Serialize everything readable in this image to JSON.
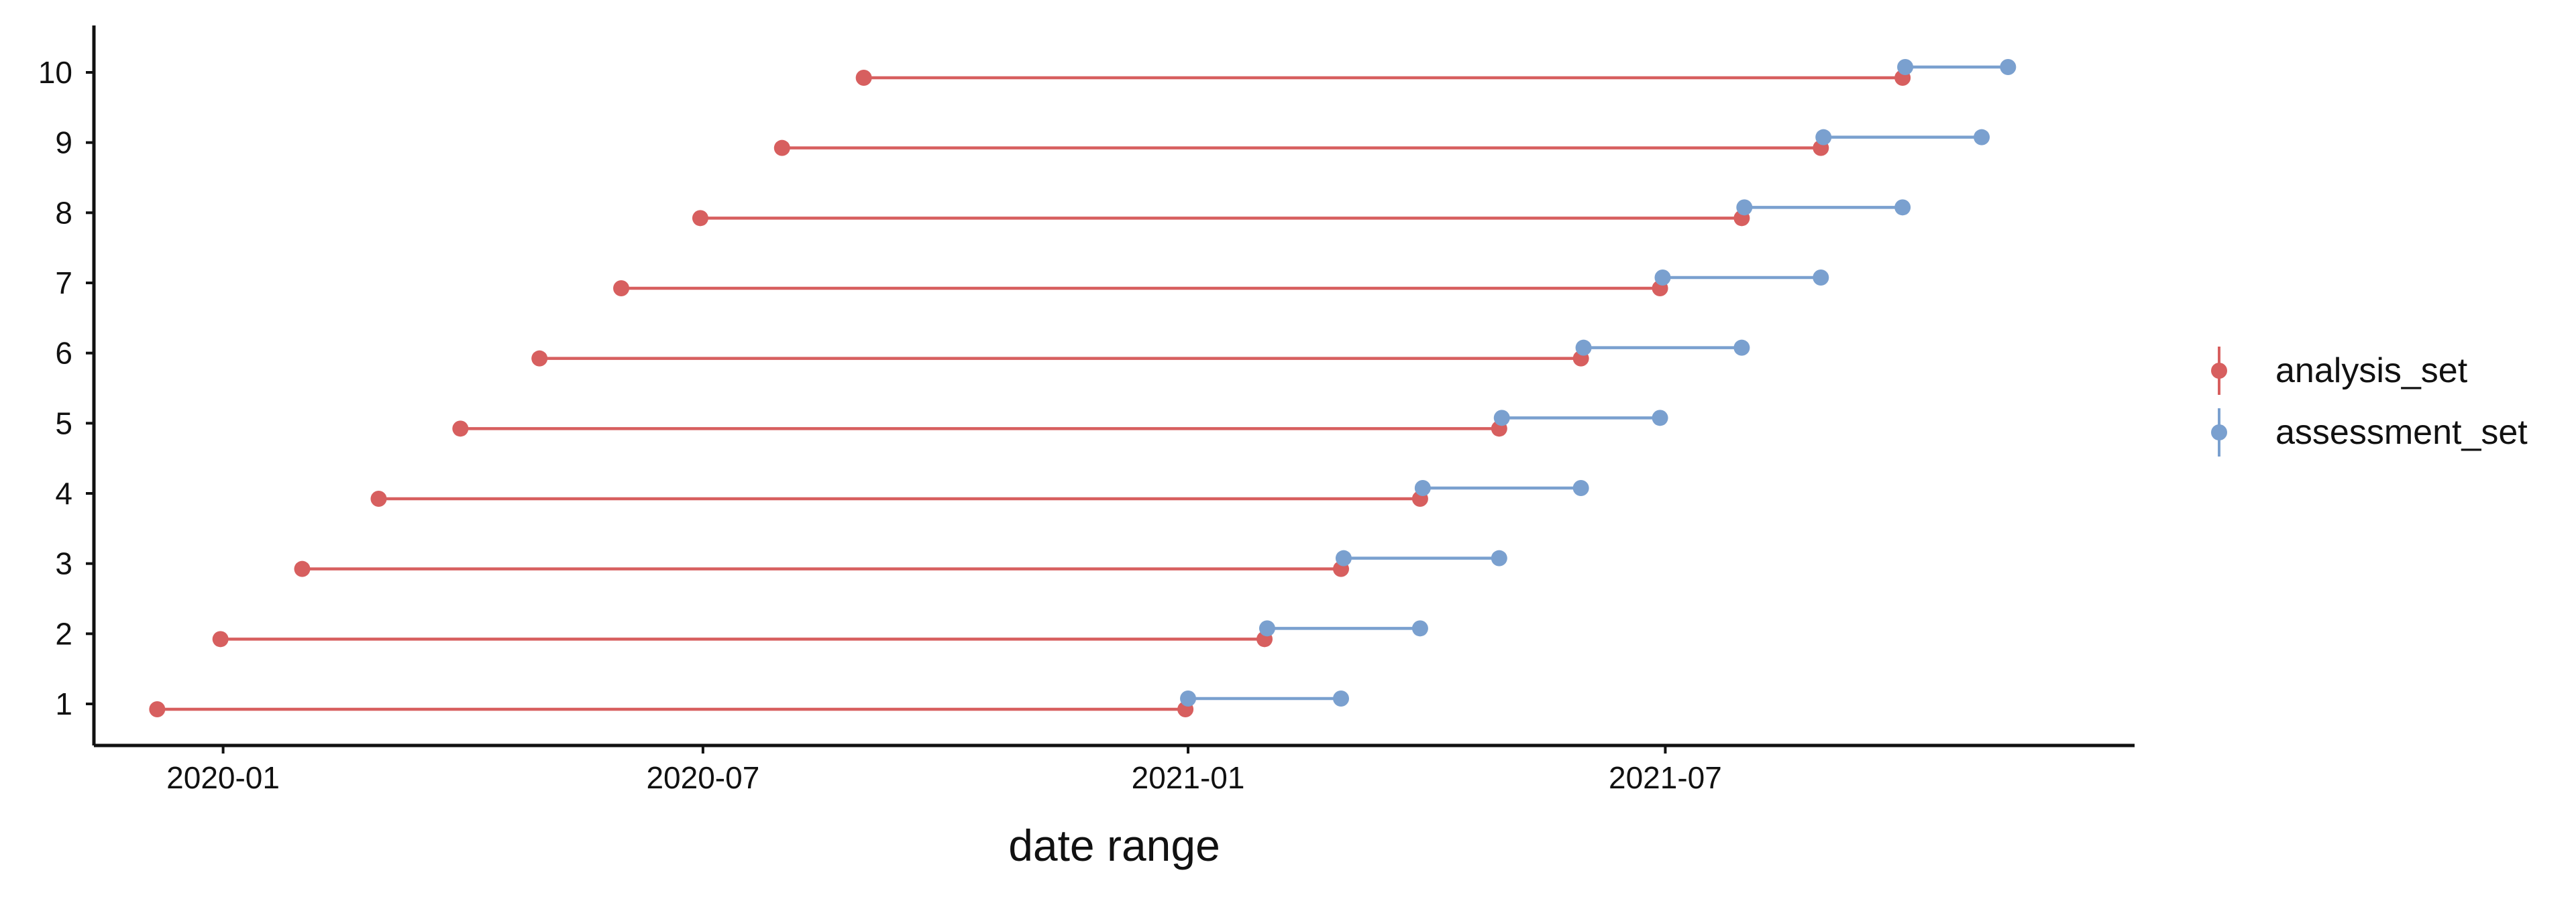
{
  "chart_data": {
    "type": "line",
    "title": "",
    "xlabel": "date range",
    "ylabel": "",
    "x_ticks": [
      "2020-01",
      "2020-07",
      "2021-01",
      "2021-07"
    ],
    "x_tick_dates": [
      "2020-01-01",
      "2020-07-01",
      "2021-01-01",
      "2021-07-01"
    ],
    "x_range": [
      "2019-11-13",
      "2021-12-26"
    ],
    "y_categories": [
      "1",
      "2",
      "3",
      "4",
      "5",
      "6",
      "7",
      "8",
      "9",
      "10"
    ],
    "grid": false,
    "legend_position": "right",
    "colors": {
      "analysis_set": "#d75f5f",
      "assessment_set": "#7aa0cf"
    },
    "series": [
      {
        "name": "analysis_set",
        "segments": [
          {
            "y": "1",
            "start": "2019-12-07",
            "end": "2020-12-31"
          },
          {
            "y": "2",
            "start": "2019-12-31",
            "end": "2021-01-30"
          },
          {
            "y": "3",
            "start": "2020-01-31",
            "end": "2021-02-28"
          },
          {
            "y": "4",
            "start": "2020-02-29",
            "end": "2021-03-30"
          },
          {
            "y": "5",
            "start": "2020-03-31",
            "end": "2021-04-29"
          },
          {
            "y": "6",
            "start": "2020-04-30",
            "end": "2021-05-30"
          },
          {
            "y": "7",
            "start": "2020-05-31",
            "end": "2021-06-29"
          },
          {
            "y": "8",
            "start": "2020-06-30",
            "end": "2021-07-30"
          },
          {
            "y": "9",
            "start": "2020-07-31",
            "end": "2021-08-29"
          },
          {
            "y": "10",
            "start": "2020-08-31",
            "end": "2021-09-29"
          }
        ]
      },
      {
        "name": "assessment_set",
        "segments": [
          {
            "y": "1",
            "start": "2021-01-01",
            "end": "2021-02-28"
          },
          {
            "y": "2",
            "start": "2021-01-31",
            "end": "2021-03-30"
          },
          {
            "y": "3",
            "start": "2021-03-01",
            "end": "2021-04-29"
          },
          {
            "y": "4",
            "start": "2021-03-31",
            "end": "2021-05-30"
          },
          {
            "y": "5",
            "start": "2021-04-30",
            "end": "2021-06-29"
          },
          {
            "y": "6",
            "start": "2021-05-31",
            "end": "2021-07-30"
          },
          {
            "y": "7",
            "start": "2021-06-30",
            "end": "2021-08-29"
          },
          {
            "y": "8",
            "start": "2021-07-31",
            "end": "2021-09-29"
          },
          {
            "y": "9",
            "start": "2021-08-30",
            "end": "2021-10-29"
          },
          {
            "y": "10",
            "start": "2021-09-30",
            "end": "2021-11-08"
          }
        ]
      }
    ]
  }
}
